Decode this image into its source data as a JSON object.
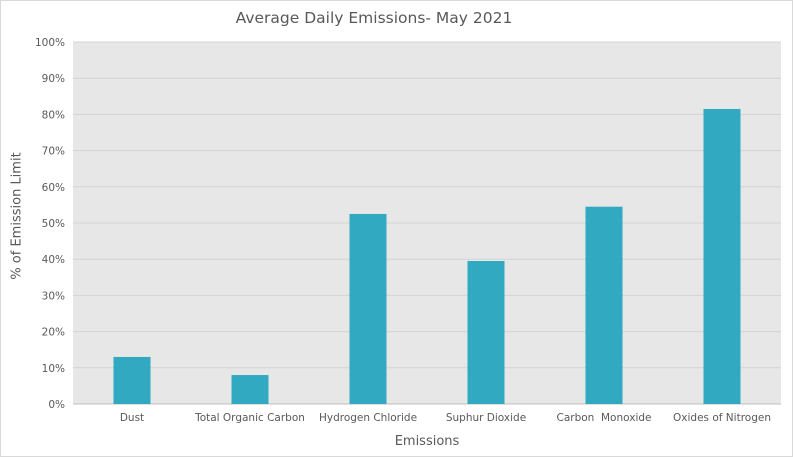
{
  "chart_data": {
    "type": "bar",
    "title": "Average Daily Emissions- May 2021",
    "xlabel": "Emissions",
    "ylabel": "% of Emission Limit",
    "categories": [
      "Dust",
      "Total Organic Carbon",
      "Hydrogen Chloride",
      "Suphur Dioxide",
      "Carbon  Monoxide",
      "Oxides of Nitrogen"
    ],
    "values": [
      13,
      8,
      52.5,
      39.5,
      54.5,
      81.5
    ],
    "ylim": [
      0,
      100
    ],
    "yticks": [
      "0%",
      "10%",
      "20%",
      "30%",
      "40%",
      "50%",
      "60%",
      "70%",
      "80%",
      "90%",
      "100%"
    ],
    "grid": true,
    "legend": "none",
    "bar_color": "#31a9c1",
    "plot_background": "#e7e7e7"
  }
}
